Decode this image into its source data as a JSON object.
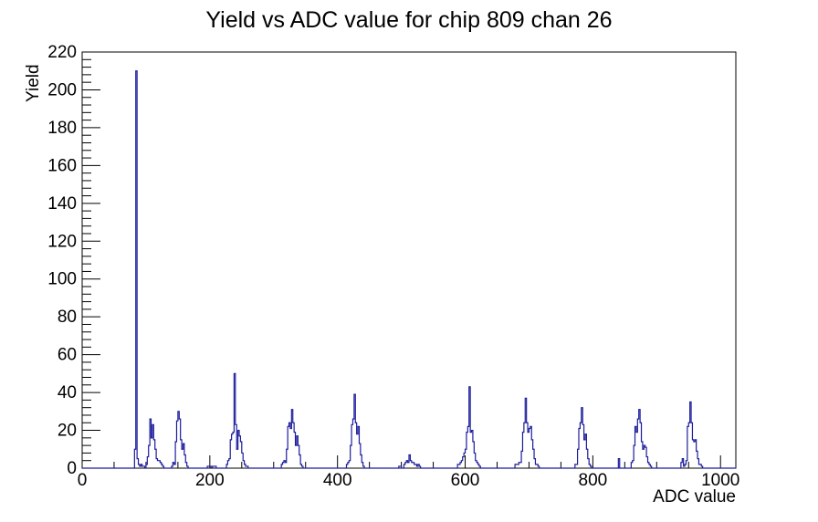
{
  "title": "Yield vs ADC value for chip 809 chan 26",
  "chart_data": {
    "type": "bar",
    "subtype": "root-step-histogram",
    "title": "Yield vs ADC value for chip 809 chan 26",
    "xlabel": "ADC value",
    "ylabel": "Yield",
    "xlim": [
      0,
      1024
    ],
    "ylim": [
      0,
      220
    ],
    "grid": "off",
    "legend": "none",
    "line_color": "#1c1c9c",
    "frame_color": "#000000",
    "bin_width": 2,
    "x_axis": {
      "major_ticks": [
        {
          "value": 0,
          "label": "0"
        },
        {
          "value": 200,
          "label": "200"
        },
        {
          "value": 400,
          "label": "400"
        },
        {
          "value": 600,
          "label": "600"
        },
        {
          "value": 800,
          "label": "800"
        },
        {
          "value": 1000,
          "label": "1000"
        }
      ],
      "minor_step": 50
    },
    "y_axis": {
      "major_ticks": [
        {
          "value": 0,
          "label": "0"
        },
        {
          "value": 20,
          "label": "20"
        },
        {
          "value": 40,
          "label": "40"
        },
        {
          "value": 60,
          "label": "60"
        },
        {
          "value": 80,
          "label": "80"
        },
        {
          "value": 100,
          "label": "100"
        },
        {
          "value": 120,
          "label": "120"
        },
        {
          "value": 140,
          "label": "140"
        },
        {
          "value": 160,
          "label": "160"
        },
        {
          "value": 180,
          "label": "180"
        },
        {
          "value": 200,
          "label": "200"
        },
        {
          "value": 220,
          "label": "220"
        }
      ],
      "minor_step": 4
    },
    "clusters": [
      {
        "start": 82,
        "counts": [
          10,
          210,
          5,
          2,
          1,
          2,
          1,
          1
        ]
      },
      {
        "start": 100,
        "counts": [
          2,
          6,
          12,
          26,
          16,
          23,
          15,
          10,
          5,
          4,
          4,
          3,
          2,
          1
        ]
      },
      {
        "start": 140,
        "counts": [
          1,
          3,
          2,
          14,
          25,
          30,
          26,
          15,
          10,
          13,
          7,
          3,
          1
        ]
      },
      {
        "start": 196,
        "counts": [
          1,
          1,
          1,
          0,
          1,
          1,
          1
        ]
      },
      {
        "start": 226,
        "counts": [
          2,
          4,
          5,
          15,
          18,
          19,
          50,
          23,
          10,
          20,
          17,
          14,
          8,
          4,
          2,
          1,
          1
        ]
      },
      {
        "start": 312,
        "counts": [
          2,
          3,
          4,
          3,
          10,
          22,
          24,
          21,
          31,
          24,
          19,
          12,
          17,
          12,
          7,
          2,
          1
        ]
      },
      {
        "start": 414,
        "counts": [
          2,
          3,
          4,
          12,
          23,
          26,
          39,
          24,
          18,
          22,
          13,
          7,
          3,
          1
        ]
      },
      {
        "start": 496,
        "counts": [
          1,
          1,
          0,
          0,
          2,
          3,
          4,
          3,
          7,
          4,
          3,
          3,
          2,
          2,
          1,
          2,
          1
        ]
      },
      {
        "start": 588,
        "counts": [
          2,
          2,
          3,
          4,
          6,
          8,
          10,
          19,
          22,
          43,
          19,
          20,
          14,
          8,
          4,
          3,
          2,
          1
        ]
      },
      {
        "start": 678,
        "counts": [
          2,
          2,
          2,
          3,
          3,
          9,
          19,
          24,
          37,
          24,
          19,
          21,
          22,
          15,
          10,
          5,
          2,
          2,
          1
        ]
      },
      {
        "start": 772,
        "counts": [
          2,
          2,
          10,
          21,
          24,
          32,
          23,
          15,
          18,
          10,
          5,
          2,
          1
        ]
      },
      {
        "start": 840,
        "counts": [
          5
        ]
      },
      {
        "start": 860,
        "counts": [
          3,
          4,
          12,
          22,
          19,
          26,
          31,
          24,
          14,
          10,
          12,
          11,
          6,
          3,
          2,
          1
        ]
      },
      {
        "start": 938,
        "counts": [
          3,
          5,
          1,
          2,
          4,
          22,
          24,
          35,
          24,
          15,
          14,
          15,
          9,
          5,
          2,
          2,
          1
        ]
      }
    ]
  }
}
